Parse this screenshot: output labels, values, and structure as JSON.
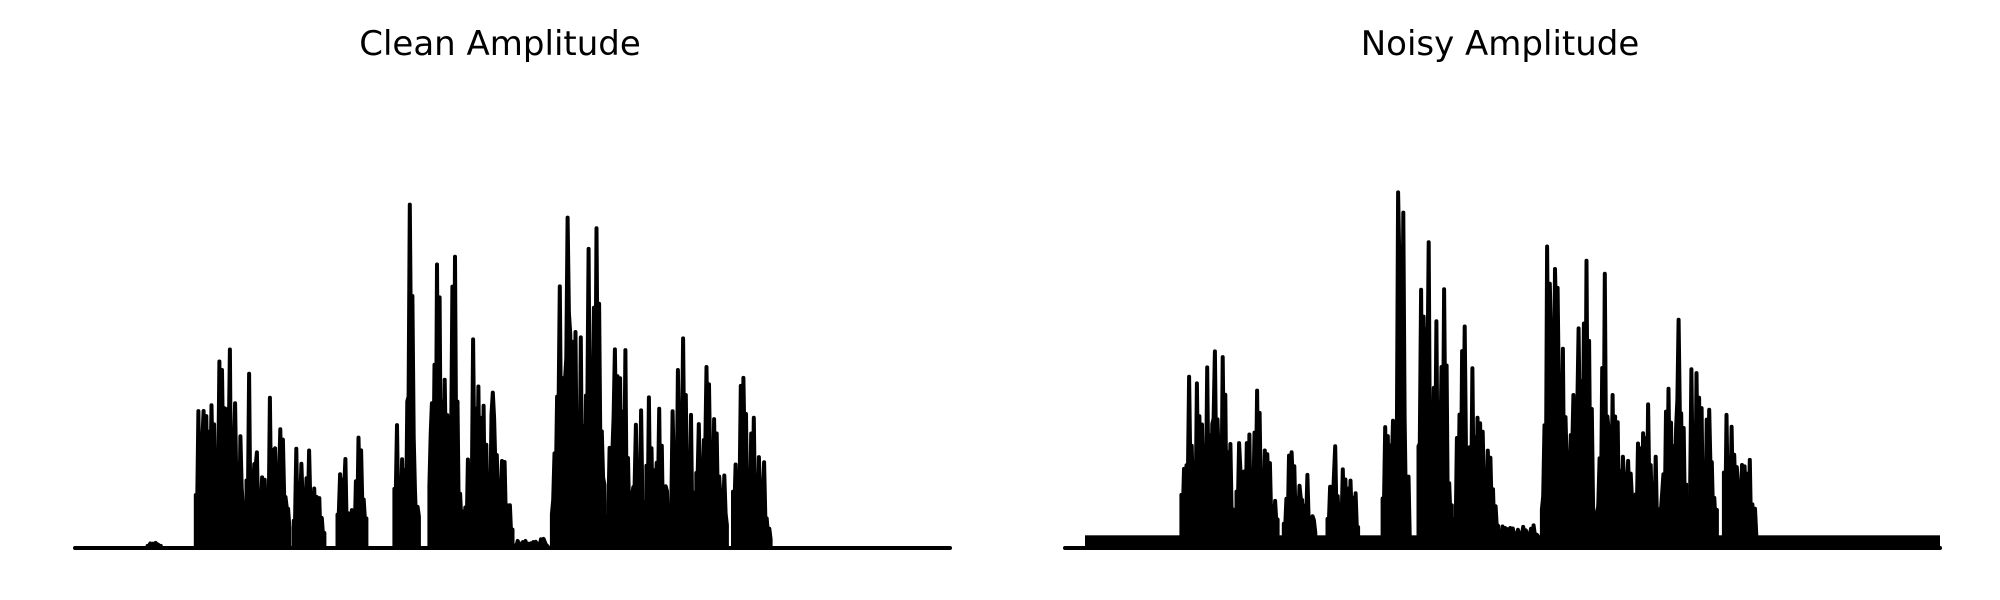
{
  "chart_data": [
    {
      "type": "area",
      "title": "Clean Amplitude",
      "axes_visible": false,
      "grid": false,
      "color": "#000000",
      "x_range": [
        0,
        100
      ],
      "y_range": [
        0,
        1
      ],
      "baseline": 0.004,
      "segments": [
        {
          "start": 8.3,
          "end": 9.8,
          "peak": 0.016
        },
        {
          "start": 13.8,
          "end": 19.2,
          "peaks": [
            0.4,
            0.43,
            0.49,
            0.52,
            0.58,
            0.53,
            0.37
          ]
        },
        {
          "start": 19.6,
          "end": 24.5,
          "peaks": [
            0.6,
            0.31,
            0.2,
            0.45,
            0.36,
            0.25
          ]
        },
        {
          "start": 25.0,
          "end": 28.5,
          "peaks": [
            0.29,
            0.27,
            0.24,
            0.19,
            0.11
          ]
        },
        {
          "start": 30.0,
          "end": 33.3,
          "peaks": [
            0.29,
            0.2,
            0.15,
            0.27,
            0.21
          ]
        },
        {
          "start": 36.5,
          "end": 39.3,
          "peaks": [
            0.43,
            0.23,
            1.0,
            0.3
          ]
        },
        {
          "start": 40.5,
          "end": 44.3,
          "peaks": [
            0.73,
            0.92,
            0.61,
            0.68,
            0.28
          ]
        },
        {
          "start": 44.6,
          "end": 50.0,
          "peaks": [
            0.3,
            0.57,
            0.38,
            0.47,
            0.26,
            0.16
          ]
        },
        {
          "start": 50.3,
          "end": 54.0,
          "peak": 0.02
        },
        {
          "start": 54.5,
          "end": 60.5,
          "peaks": [
            0.4,
            0.84,
            0.85,
            0.59,
            0.52,
            0.81,
            0.87,
            0.4
          ]
        },
        {
          "start": 60.8,
          "end": 65.0,
          "peaks": [
            0.32,
            0.68,
            0.49,
            0.3,
            0.54
          ]
        },
        {
          "start": 65.3,
          "end": 67.8,
          "peaks": [
            0.54,
            0.36,
            0.24
          ]
        },
        {
          "start": 68.0,
          "end": 70.7,
          "peaks": [
            0.36,
            0.52,
            0.4
          ]
        },
        {
          "start": 71.0,
          "end": 74.5,
          "peaks": [
            0.55,
            0.45,
            0.36,
            0.2
          ]
        },
        {
          "start": 75.2,
          "end": 79.5,
          "peaks": [
            0.49,
            0.47,
            0.33,
            0.24,
            0.14
          ]
        }
      ]
    },
    {
      "type": "area",
      "title": "Noisy Amplitude",
      "axes_visible": false,
      "grid": false,
      "color": "#000000",
      "x_range": [
        0,
        100
      ],
      "y_range": [
        0,
        1
      ],
      "noise_floor": 0.028,
      "segments": [
        {
          "start": 13.3,
          "end": 19.2,
          "peaks": [
            0.39,
            0.41,
            0.44,
            0.48,
            0.55,
            0.52,
            0.37
          ]
        },
        {
          "start": 19.6,
          "end": 24.3,
          "peaks": [
            0.58,
            0.31,
            0.46,
            0.37,
            0.22
          ]
        },
        {
          "start": 25.0,
          "end": 28.6,
          "peaks": [
            0.3,
            0.27,
            0.23,
            0.18,
            0.15
          ]
        },
        {
          "start": 30.0,
          "end": 33.5,
          "peaks": [
            0.3,
            0.25,
            0.2,
            0.26,
            0.22
          ]
        },
        {
          "start": 36.3,
          "end": 39.4,
          "peaks": [
            0.43,
            0.49,
            1.0,
            0.31
          ]
        },
        {
          "start": 40.4,
          "end": 44.2,
          "peaks": [
            0.72,
            0.93,
            0.63,
            0.66,
            0.32
          ]
        },
        {
          "start": 44.5,
          "end": 49.5,
          "peaks": [
            0.3,
            0.58,
            0.4,
            0.44,
            0.26,
            0.17
          ]
        },
        {
          "start": 49.7,
          "end": 54.0,
          "peak": 0.05
        },
        {
          "start": 54.5,
          "end": 60.5,
          "peaks": [
            0.4,
            0.83,
            0.82,
            0.57,
            0.55,
            0.72,
            0.86,
            0.42
          ]
        },
        {
          "start": 60.8,
          "end": 64.8,
          "peaks": [
            0.33,
            0.67,
            0.48,
            0.32,
            0.53
          ]
        },
        {
          "start": 65.2,
          "end": 67.8,
          "peaks": [
            0.55,
            0.36,
            0.26
          ]
        },
        {
          "start": 68.1,
          "end": 71.0,
          "peaks": [
            0.35,
            0.52,
            0.55,
            0.4
          ]
        },
        {
          "start": 71.3,
          "end": 74.5,
          "peaks": [
            0.51,
            0.48,
            0.37,
            0.24
          ]
        },
        {
          "start": 75.3,
          "end": 79.0,
          "peaks": [
            0.5,
            0.43,
            0.3,
            0.22
          ]
        }
      ]
    }
  ]
}
